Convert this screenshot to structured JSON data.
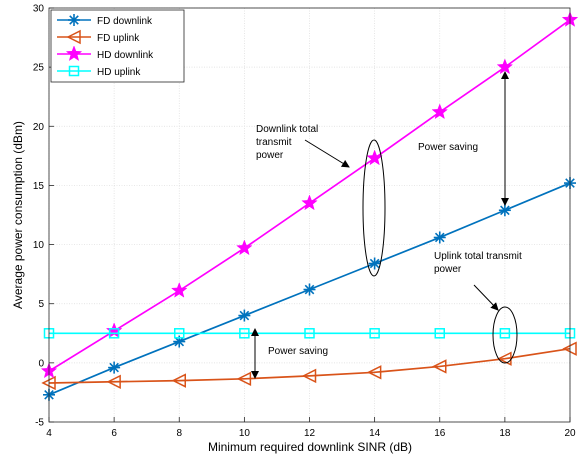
{
  "chart_data": {
    "type": "line",
    "xlabel": "Minimum required downlink SINR (dB)",
    "ylabel": "Average power consumption (dBm)",
    "xlim": [
      4,
      20
    ],
    "ylim": [
      -5,
      30
    ],
    "x_ticks": [
      "4",
      "6",
      "8",
      "10",
      "12",
      "14",
      "16",
      "18",
      "20"
    ],
    "y_ticks": [
      "-5",
      "0",
      "5",
      "10",
      "15",
      "20",
      "25",
      "30"
    ],
    "grid": true,
    "legend_position": "top-left",
    "x": [
      4,
      6,
      8,
      10,
      12,
      14,
      16,
      18,
      20
    ],
    "series": [
      {
        "name": "FD downlink",
        "color": "#0072BD",
        "marker": "asterisk",
        "values": [
          -2.7,
          -0.4,
          1.8,
          4.0,
          6.2,
          8.4,
          10.6,
          12.9,
          15.2
        ]
      },
      {
        "name": "FD uplink",
        "color": "#D95319",
        "marker": "triangle-left",
        "values": [
          -1.7,
          -1.6,
          -1.5,
          -1.35,
          -1.1,
          -0.8,
          -0.3,
          0.35,
          1.2
        ]
      },
      {
        "name": "HD downlink",
        "color": "#FF00FF",
        "marker": "star",
        "values": [
          -0.7,
          2.7,
          6.1,
          9.7,
          13.5,
          17.3,
          21.2,
          25.0,
          29.0
        ]
      },
      {
        "name": "HD uplink",
        "color": "#00FFFF",
        "marker": "square",
        "values": [
          2.5,
          2.5,
          2.5,
          2.5,
          2.5,
          2.5,
          2.5,
          2.5,
          2.5
        ]
      }
    ],
    "annotations": [
      {
        "id": "downlink-total",
        "lines": [
          "Downlink total",
          "transmit",
          "power"
        ]
      },
      {
        "id": "power-saving-top",
        "lines": [
          "Power saving"
        ]
      },
      {
        "id": "uplink-total",
        "lines": [
          "Uplink total transmit",
          "power"
        ]
      },
      {
        "id": "power-saving-bottom",
        "lines": [
          "Power saving"
        ]
      }
    ]
  }
}
